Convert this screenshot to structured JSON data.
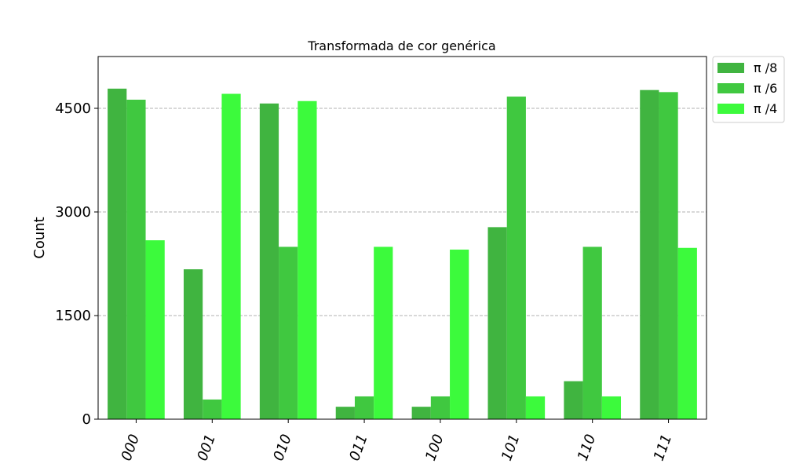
{
  "chart_data": {
    "type": "bar",
    "title": "Transformada de cor genérica",
    "xlabel": "",
    "ylabel": "Count",
    "ylim": [
      0,
      5250
    ],
    "yticks": [
      0,
      1500,
      3000,
      4500
    ],
    "grid": "y-dashed",
    "legend_position": "outside-top-right",
    "categories": [
      "000",
      "001",
      "010",
      "011",
      "100",
      "101",
      "110",
      "111"
    ],
    "series": [
      {
        "name": "π /8",
        "color": "#40b440",
        "values": [
          4785,
          2170,
          4570,
          180,
          180,
          2780,
          550,
          4765
        ]
      },
      {
        "name": "π /6",
        "color": "#40c840",
        "values": [
          4625,
          285,
          2495,
          330,
          330,
          4670,
          2495,
          4735
        ]
      },
      {
        "name": "π /4",
        "color": "#3cfa3c",
        "values": [
          2590,
          4710,
          4605,
          2495,
          2455,
          330,
          330,
          2480
        ]
      }
    ]
  }
}
